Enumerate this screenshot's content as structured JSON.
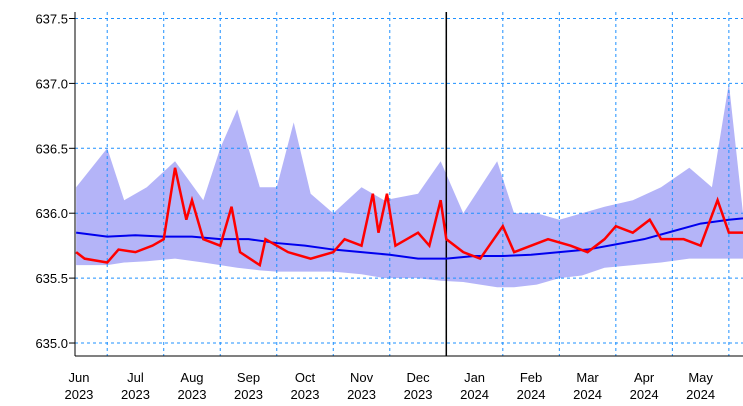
{
  "chart_data": {
    "type": "line",
    "xlim": [
      0.43,
      12.25
    ],
    "ylim": [
      634.9,
      637.55
    ],
    "xticks": [
      {
        "value": 0.5,
        "label": "Jun 2023"
      },
      {
        "value": 1.5,
        "label": "Jul 2023"
      },
      {
        "value": 2.5,
        "label": "Aug 2023"
      },
      {
        "value": 3.5,
        "label": "Sep 2023"
      },
      {
        "value": 4.5,
        "label": "Oct 2023"
      },
      {
        "value": 5.5,
        "label": "Nov 2023"
      },
      {
        "value": 6.5,
        "label": "Dec 2023"
      },
      {
        "value": 7.5,
        "label": "Jan 2024"
      },
      {
        "value": 8.5,
        "label": "Feb 2024"
      },
      {
        "value": 9.5,
        "label": "Mar 2024"
      },
      {
        "value": 10.5,
        "label": "Apr 2024"
      },
      {
        "value": 11.5,
        "label": "May 2024"
      }
    ],
    "yticks": [
      {
        "value": 635,
        "label": "635.0"
      },
      {
        "value": 635.5,
        "label": "635.5"
      },
      {
        "value": 636,
        "label": "636.0"
      },
      {
        "value": 636.5,
        "label": "636.5"
      },
      {
        "value": 637,
        "label": "637.0"
      },
      {
        "value": 637.5,
        "label": "637.5"
      }
    ],
    "grid": true,
    "grid_color": "#1e90ff",
    "reference_line": 7,
    "band": {
      "color": "#b4b4f8",
      "x": [
        0.45,
        1,
        1.3,
        1.7,
        2.2,
        2.7,
        3,
        3.3,
        3.7,
        4,
        4.3,
        4.6,
        5,
        5.5,
        5.9,
        6.5,
        6.9,
        7.3,
        7.9,
        8.2,
        8.6,
        9,
        9.4,
        9.8,
        10.3,
        10.8,
        11.3,
        11.7,
        12,
        12.25
      ],
      "upper": [
        636.2,
        636.5,
        636.1,
        636.2,
        636.4,
        636.1,
        636.5,
        636.8,
        636.2,
        636.2,
        636.7,
        636.15,
        636.0,
        636.2,
        636.1,
        636.15,
        636.4,
        636.0,
        636.4,
        636.0,
        636.0,
        635.95,
        636.0,
        636.05,
        636.1,
        636.2,
        636.35,
        636.2,
        637.0,
        636.0
      ],
      "lower": [
        635.6,
        635.6,
        635.62,
        635.63,
        635.65,
        635.62,
        635.6,
        635.58,
        635.56,
        635.55,
        635.55,
        635.55,
        635.55,
        635.53,
        635.5,
        635.5,
        635.48,
        635.47,
        635.43,
        635.43,
        635.45,
        635.5,
        635.52,
        635.58,
        635.6,
        635.62,
        635.65,
        635.65,
        635.65,
        635.65
      ]
    },
    "series": [
      {
        "color": "#0000ee",
        "x": [
          0.45,
          1,
          1.5,
          2,
          2.5,
          3,
          3.5,
          4,
          4.5,
          5,
          5.5,
          6,
          6.5,
          7,
          7.5,
          8,
          8.5,
          9,
          9.5,
          10,
          10.5,
          11,
          11.5,
          12,
          12.25
        ],
        "values": [
          635.85,
          635.82,
          635.83,
          635.82,
          635.82,
          635.8,
          635.8,
          635.77,
          635.75,
          635.72,
          635.7,
          635.68,
          635.65,
          635.65,
          635.67,
          635.67,
          635.68,
          635.7,
          635.72,
          635.76,
          635.8,
          635.86,
          635.92,
          635.95,
          635.96
        ]
      },
      {
        "color": "#ff0000",
        "x": [
          0.45,
          0.6,
          1,
          1.2,
          1.5,
          1.8,
          2,
          2.2,
          2.4,
          2.5,
          2.7,
          3,
          3.2,
          3.35,
          3.7,
          3.8,
          4.2,
          4.6,
          5,
          5.2,
          5.5,
          5.7,
          5.8,
          5.95,
          6.1,
          6.5,
          6.7,
          6.9,
          7,
          7.3,
          7.6,
          8,
          8.2,
          8.5,
          8.8,
          9.2,
          9.5,
          9.8,
          10,
          10.3,
          10.6,
          10.8,
          11.2,
          11.5,
          11.8,
          12,
          12.25
        ],
        "values": [
          635.7,
          635.65,
          635.62,
          635.72,
          635.7,
          635.75,
          635.8,
          636.35,
          635.95,
          636.1,
          635.8,
          635.75,
          636.05,
          635.7,
          635.6,
          635.8,
          635.7,
          635.65,
          635.7,
          635.8,
          635.75,
          636.15,
          635.85,
          636.15,
          635.75,
          635.85,
          635.75,
          636.1,
          635.8,
          635.7,
          635.65,
          635.9,
          635.7,
          635.75,
          635.8,
          635.75,
          635.7,
          635.8,
          635.9,
          635.85,
          635.95,
          635.8,
          635.8,
          635.75,
          636.1,
          635.85,
          635.85
        ]
      }
    ]
  }
}
